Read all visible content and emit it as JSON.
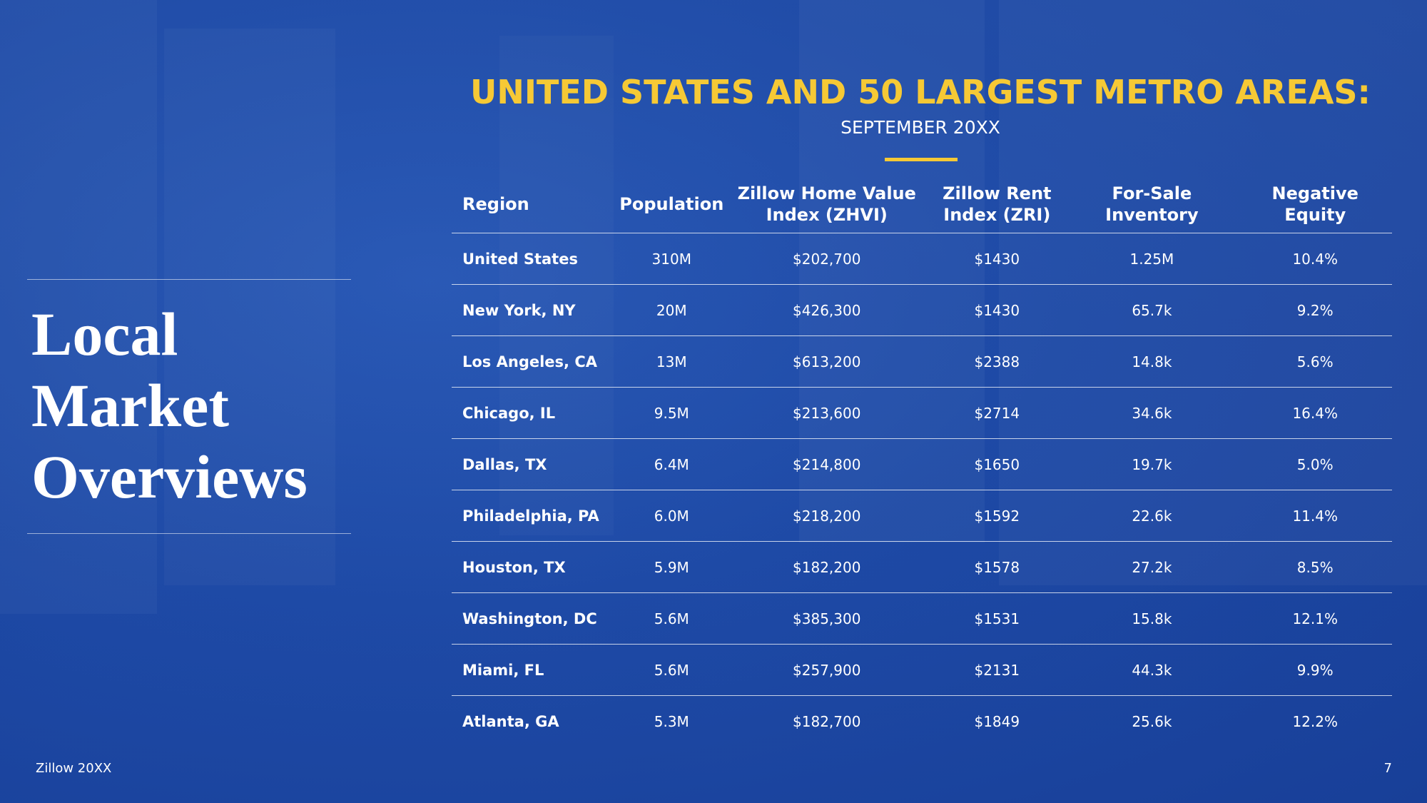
{
  "sidebar": {
    "title_lines": [
      "Local",
      "Market",
      "Overviews"
    ]
  },
  "header": {
    "title": "UNITED STATES AND 50 LARGEST METRO AREAS:",
    "subtitle": "SEPTEMBER 20XX"
  },
  "table": {
    "columns": [
      "Region",
      "Population",
      "Zillow Home Value Index (ZHVI)",
      "Zillow Rent Index (ZRI)",
      "For-Sale Inventory",
      "Negative Equity"
    ],
    "rows": [
      [
        "United States",
        "310M",
        "$202,700",
        "$1430",
        "1.25M",
        "10.4%"
      ],
      [
        "New York, NY",
        "20M",
        "$426,300",
        "$1430",
        "65.7k",
        "9.2%"
      ],
      [
        "Los Angeles, CA",
        "13M",
        "$613,200",
        "$2388",
        "14.8k",
        "5.6%"
      ],
      [
        "Chicago, IL",
        "9.5M",
        "$213,600",
        "$2714",
        "34.6k",
        "16.4%"
      ],
      [
        "Dallas, TX",
        "6.4M",
        "$214,800",
        "$1650",
        "19.7k",
        "5.0%"
      ],
      [
        "Philadelphia, PA",
        "6.0M",
        "$218,200",
        "$1592",
        "22.6k",
        "11.4%"
      ],
      [
        "Houston, TX",
        "5.9M",
        "$182,200",
        "$1578",
        "27.2k",
        "8.5%"
      ],
      [
        "Washington, DC",
        "5.6M",
        "$385,300",
        "$1531",
        "15.8k",
        "12.1%"
      ],
      [
        "Miami, FL",
        "5.6M",
        "$257,900",
        "$2131",
        "44.3k",
        "9.9%"
      ],
      [
        "Atlanta, GA",
        "5.3M",
        "$182,700",
        "$1849",
        "25.6k",
        "12.2%"
      ]
    ]
  },
  "footer": {
    "left": "Zillow 20XX",
    "page_number": "7"
  },
  "colors": {
    "background": "#1e4aa6",
    "accent_yellow": "#f6c935",
    "text": "#ffffff"
  }
}
